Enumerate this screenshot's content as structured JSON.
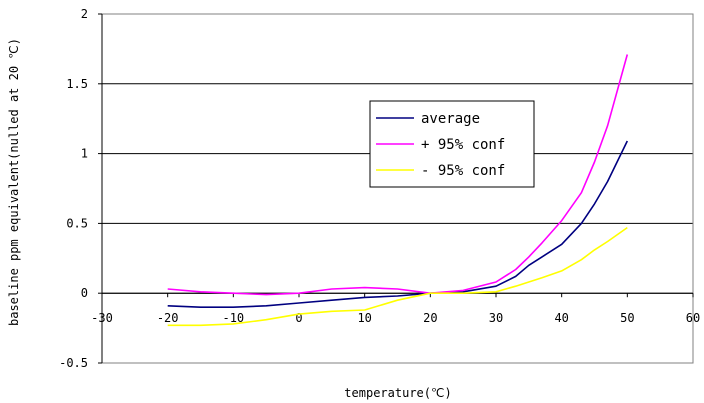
{
  "chart_data": {
    "type": "line",
    "title": "",
    "xlabel": "temperature(℃)",
    "ylabel": "baseline ppm equivalent(nulled at 20 ℃)",
    "xlim": [
      -30,
      60
    ],
    "ylim": [
      -0.5,
      2
    ],
    "x_ticks": [
      "-30",
      "-20",
      "-10",
      "0",
      "10",
      "20",
      "30",
      "40",
      "50",
      "60"
    ],
    "y_ticks": [
      "-0.5",
      "0",
      "0.5",
      "1",
      "1.5",
      "2"
    ],
    "gridlines": "horizontal",
    "legend_position": "right",
    "x": [
      -20,
      -15,
      -10,
      -5,
      0,
      5,
      10,
      15,
      20,
      25,
      30,
      33,
      35,
      37,
      40,
      43,
      45,
      47,
      50
    ],
    "series": [
      {
        "name": "average",
        "color": "#000080",
        "values": [
          -0.09,
          -0.1,
          -0.1,
          -0.09,
          -0.07,
          -0.05,
          -0.03,
          -0.02,
          0.0,
          0.01,
          0.05,
          0.12,
          0.2,
          0.26,
          0.35,
          0.5,
          0.64,
          0.8,
          1.09
        ]
      },
      {
        "name": "+ 95% conf",
        "color": "#ff00ff",
        "values": [
          0.03,
          0.01,
          0.0,
          -0.01,
          0.0,
          0.03,
          0.04,
          0.03,
          0.0,
          0.02,
          0.08,
          0.17,
          0.26,
          0.36,
          0.52,
          0.72,
          0.94,
          1.2,
          1.71
        ]
      },
      {
        "name": "- 95% conf",
        "color": "#ffff00",
        "values": [
          -0.23,
          -0.23,
          -0.22,
          -0.19,
          -0.15,
          -0.13,
          -0.12,
          -0.05,
          0.0,
          0.0,
          0.01,
          0.05,
          0.08,
          0.11,
          0.16,
          0.24,
          0.31,
          0.37,
          0.47
        ]
      }
    ]
  }
}
